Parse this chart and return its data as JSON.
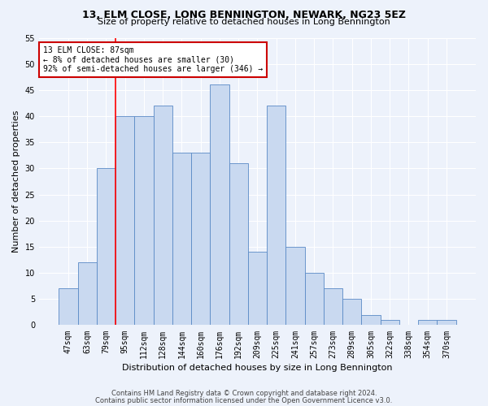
{
  "title": "13, ELM CLOSE, LONG BENNINGTON, NEWARK, NG23 5EZ",
  "subtitle": "Size of property relative to detached houses in Long Bennington",
  "xlabel": "Distribution of detached houses by size in Long Bennington",
  "ylabel": "Number of detached properties",
  "bar_labels": [
    "47sqm",
    "63sqm",
    "79sqm",
    "95sqm",
    "112sqm",
    "128sqm",
    "144sqm",
    "160sqm",
    "176sqm",
    "192sqm",
    "209sqm",
    "225sqm",
    "241sqm",
    "257sqm",
    "273sqm",
    "289sqm",
    "305sqm",
    "322sqm",
    "338sqm",
    "354sqm",
    "370sqm"
  ],
  "bar_values": [
    7,
    12,
    30,
    40,
    40,
    42,
    33,
    33,
    46,
    31,
    14,
    42,
    15,
    10,
    7,
    5,
    2,
    1,
    0,
    1,
    1
  ],
  "bar_color": "#c9d9f0",
  "bar_edge_color": "#5a8ac6",
  "ylim": [
    0,
    55
  ],
  "yticks": [
    0,
    5,
    10,
    15,
    20,
    25,
    30,
    35,
    40,
    45,
    50,
    55
  ],
  "red_line_index": 2,
  "annotation_text": "13 ELM CLOSE: 87sqm\n← 8% of detached houses are smaller (30)\n92% of semi-detached houses are larger (346) →",
  "annotation_box_color": "#ffffff",
  "annotation_box_edge": "#cc0000",
  "footer1": "Contains HM Land Registry data © Crown copyright and database right 2024.",
  "footer2": "Contains public sector information licensed under the Open Government Licence v3.0.",
  "bg_color": "#edf2fb",
  "plot_bg_color": "#edf2fb",
  "grid_color": "#ffffff",
  "title_fontsize": 9,
  "subtitle_fontsize": 8,
  "xlabel_fontsize": 8,
  "ylabel_fontsize": 8,
  "tick_fontsize": 7,
  "annotation_fontsize": 7,
  "footer_fontsize": 6
}
